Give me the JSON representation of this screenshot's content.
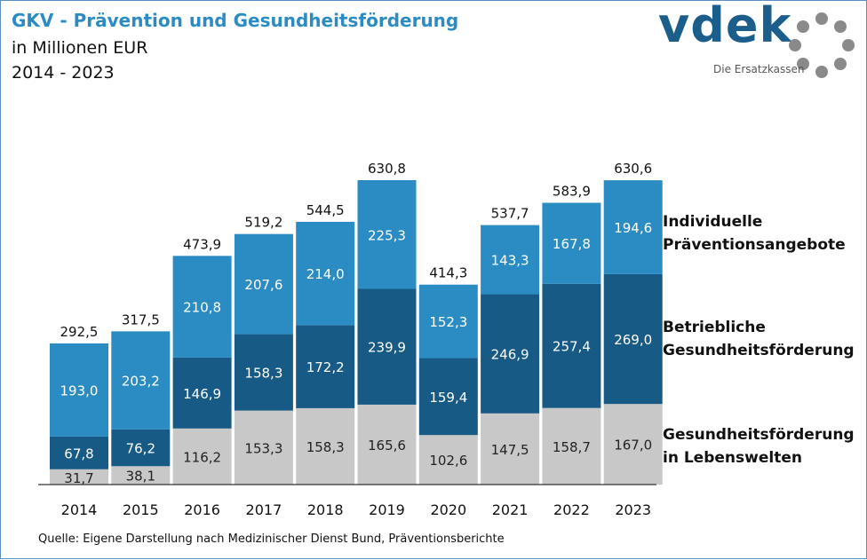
{
  "header": {
    "title": "GKV - Prävention und Gesundheitsförderung",
    "subtitle": "in Millionen EUR",
    "period": "2014 - 2023"
  },
  "logo": {
    "wordmark": "vdek",
    "tagline": "Die Ersatzkassen"
  },
  "source": "Quelle: Eigene Darstellung nach Medizinischer Dienst Bund, Präventionsberichte",
  "colors": {
    "lebenswelten": "#c8c8c8",
    "betrieblich": "#175a85",
    "individuell": "#2b8cc4",
    "title": "#2b8cc4"
  },
  "chart_data": {
    "type": "bar",
    "stacked": true,
    "categories": [
      "2014",
      "2015",
      "2016",
      "2017",
      "2018",
      "2019",
      "2020",
      "2021",
      "2022",
      "2023"
    ],
    "series": [
      {
        "name": "Gesundheitsförderung in Lebenswelten",
        "values": [
          31.7,
          38.1,
          116.2,
          153.3,
          158.3,
          165.6,
          102.6,
          147.5,
          158.7,
          167.0
        ],
        "labels": [
          "31,7",
          "38,1",
          "116,2",
          "153,3",
          "158,3",
          "165,6",
          "102,6",
          "147,5",
          "158,7",
          "167,0"
        ],
        "color": "#c8c8c8"
      },
      {
        "name": "Betriebliche Gesundheitsförderung",
        "values": [
          67.8,
          76.2,
          146.9,
          158.3,
          172.2,
          239.9,
          159.4,
          246.9,
          257.4,
          269.0
        ],
        "labels": [
          "67,8",
          "76,2",
          "146,9",
          "158,3",
          "172,2",
          "239,9",
          "159,4",
          "246,9",
          "257,4",
          "269,0"
        ],
        "color": "#175a85"
      },
      {
        "name": "Individuelle Präventionsangebote",
        "values": [
          193.0,
          203.2,
          210.8,
          207.6,
          214.0,
          225.3,
          152.3,
          143.3,
          167.8,
          194.6
        ],
        "labels": [
          "193,0",
          "203,2",
          "210,8",
          "207,6",
          "214,0",
          "225,3",
          "152,3",
          "143,3",
          "167,8",
          "194,6"
        ],
        "color": "#2b8cc4"
      }
    ],
    "totals": [
      292.5,
      317.5,
      473.9,
      519.2,
      544.5,
      630.8,
      414.3,
      537.7,
      583.9,
      630.6
    ],
    "total_labels": [
      "292,5",
      "317,5",
      "473,9",
      "519,2",
      "544,5",
      "630,8",
      "414,3",
      "537,7",
      "583,9",
      "630,6"
    ],
    "legend": [
      "Individuelle\nPräventionsangebote",
      "Betriebliche\nGesundheitsförderung",
      "Gesundheitsförderung\nin Lebenswelten"
    ],
    "legend_position": "right",
    "ylim": [
      0,
      630.8
    ],
    "grid": false
  }
}
